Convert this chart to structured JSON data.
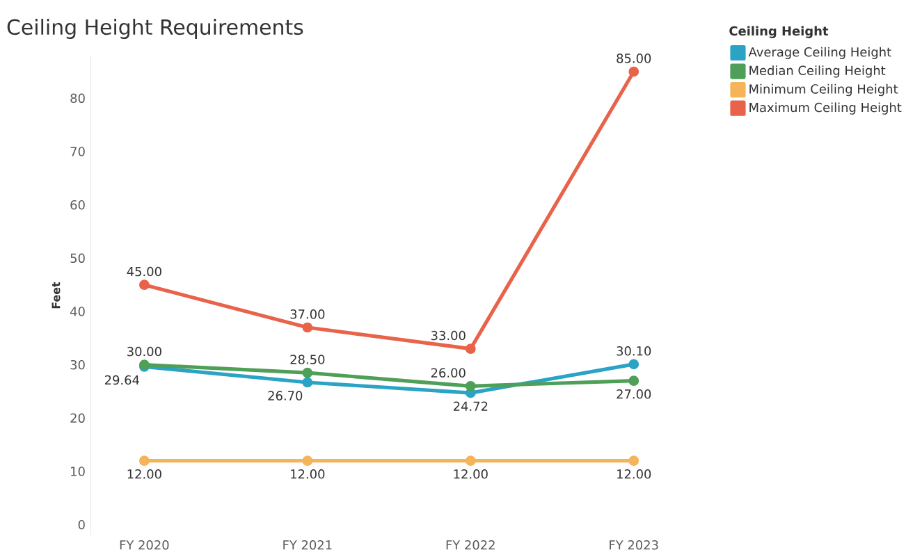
{
  "chart_data": {
    "type": "line",
    "title": "Ceiling Height Requirements",
    "ylabel": "Feet",
    "legend_title": "Ceiling Height",
    "categories": [
      "FY 2020",
      "FY 2021",
      "FY 2022",
      "FY 2023"
    ],
    "series": [
      {
        "name": "Average Ceiling Height",
        "color": "#2ba3c5",
        "values": [
          29.64,
          26.7,
          24.72,
          30.1
        ],
        "value_labels": [
          "29.64",
          "26.70",
          "24.72",
          "30.10"
        ]
      },
      {
        "name": "Median Ceiling Height",
        "color": "#4f9f58",
        "values": [
          30.0,
          28.5,
          26.0,
          27.0
        ],
        "value_labels": [
          "30.00",
          "28.50",
          "26.00",
          "27.00"
        ]
      },
      {
        "name": "Minimum Ceiling Height",
        "color": "#f6b45a",
        "values": [
          12,
          12,
          12,
          12
        ],
        "value_labels": [
          "12.00",
          "12.00",
          "12.00",
          "12.00"
        ]
      },
      {
        "name": "Maximum Ceiling Height",
        "color": "#e8634a",
        "values": [
          45,
          37,
          33,
          85
        ],
        "value_labels": [
          "45.00",
          "37.00",
          "33.00",
          "85.00"
        ]
      }
    ],
    "ylim": [
      -2,
      88
    ],
    "yticks": [
      0,
      10,
      20,
      30,
      40,
      50,
      60,
      70,
      80
    ],
    "grid": false,
    "legend": "top right",
    "marker": "circle",
    "line_style": "solid"
  }
}
